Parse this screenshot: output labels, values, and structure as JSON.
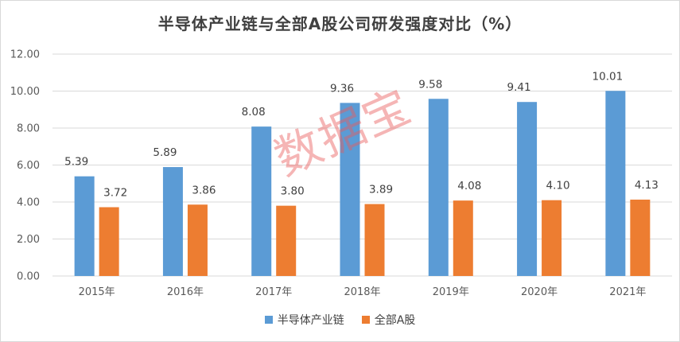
{
  "chart_data": {
    "type": "bar",
    "title": "半导体产业链与全部A股公司研发强度对比（%）",
    "categories": [
      "2015年",
      "2016年",
      "2017年",
      "2018年",
      "2019年",
      "2020年",
      "2021年"
    ],
    "series": [
      {
        "name": "半导体产业链",
        "values": [
          5.39,
          5.89,
          8.08,
          9.36,
          9.58,
          9.41,
          10.01
        ],
        "labels": [
          "5.39",
          "5.89",
          "8.08",
          "9.36",
          "9.58",
          "9.41",
          "10.01"
        ],
        "color": "#5b9bd5"
      },
      {
        "name": "全部A股",
        "values": [
          3.72,
          3.86,
          3.8,
          3.89,
          4.08,
          4.1,
          4.13
        ],
        "labels": [
          "3.72",
          "3.86",
          "3.80",
          "3.89",
          "4.08",
          "4.10",
          "4.13"
        ],
        "color": "#ed7d31"
      }
    ],
    "yticks": [
      "0.00",
      "2.00",
      "4.00",
      "6.00",
      "8.00",
      "10.00",
      "12.00"
    ],
    "ylim": [
      0,
      12
    ],
    "grid": true,
    "legend_position": "bottom"
  },
  "watermark": "数据宝"
}
